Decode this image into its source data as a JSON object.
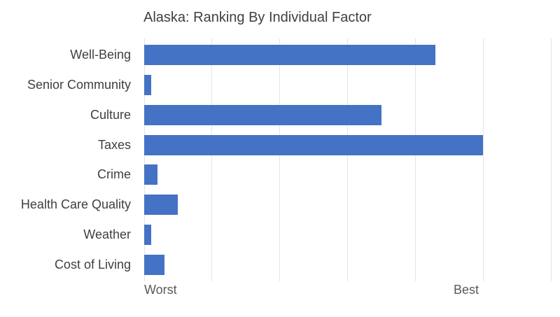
{
  "chart_data": {
    "type": "bar",
    "orientation": "horizontal",
    "title": "Alaska: Ranking By Individual Factor",
    "categories": [
      "Well-Being",
      "Senior Community",
      "Culture",
      "Taxes",
      "Crime",
      "Health Care Quality",
      "Weather",
      "Cost of Living"
    ],
    "values": [
      43,
      1,
      35,
      50,
      2,
      5,
      1,
      3
    ],
    "xlabel_left": "Worst",
    "xlabel_right": "Best",
    "xlim": [
      0,
      60
    ],
    "gridline_step": 10,
    "grid": "vertical-only",
    "legend": "none",
    "colors": {
      "bar": "#4472C4",
      "gridline": "#e2e4e7",
      "title_text": "#3f3f3f",
      "category_text": "#3f3f3f",
      "axis_text": "#595959",
      "background": "#ffffff"
    }
  }
}
